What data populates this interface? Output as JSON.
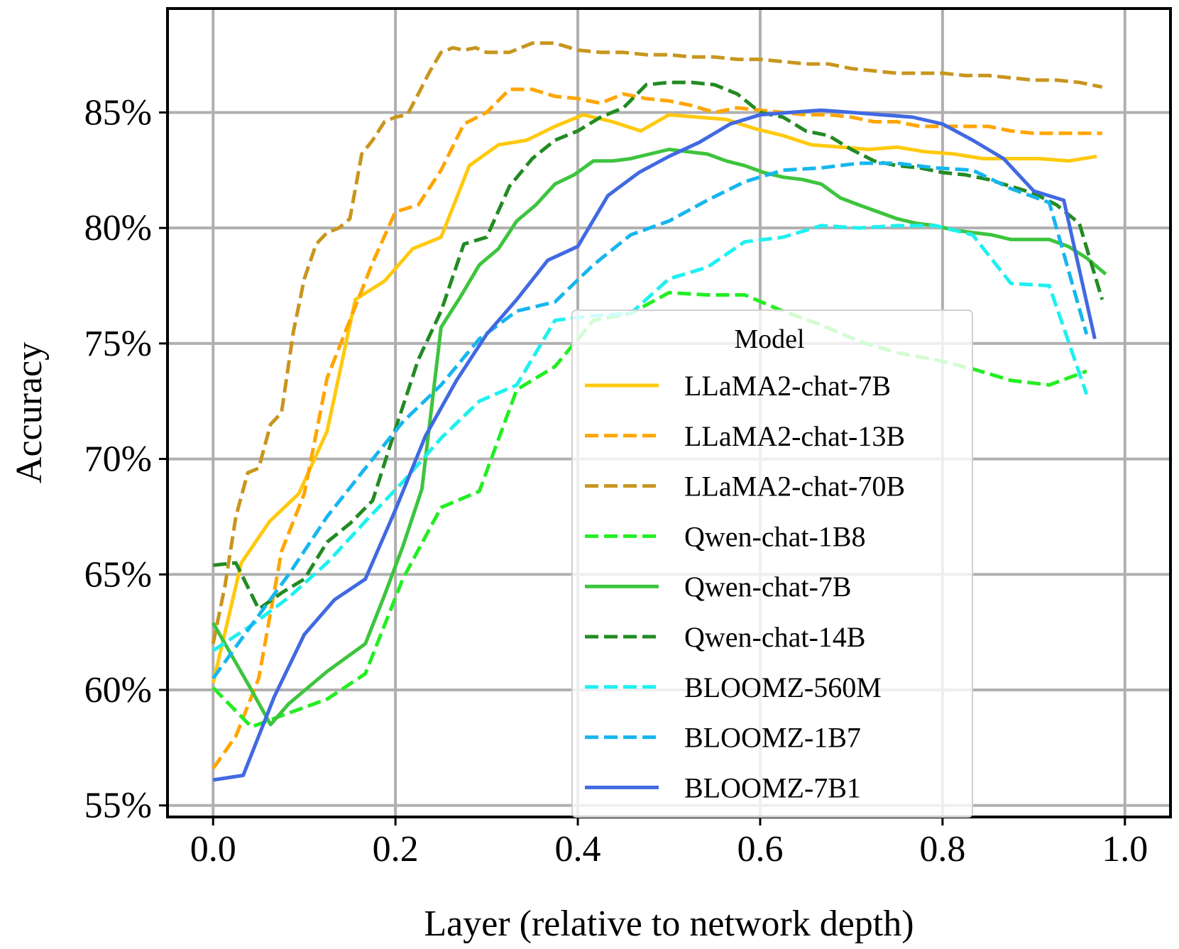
{
  "chart_data": {
    "type": "line",
    "title": "",
    "xlabel": "Layer (relative to network depth)",
    "ylabel": "Accuracy",
    "xlim": [
      -0.05,
      1.05
    ],
    "ylim": [
      54.5,
      89.5
    ],
    "x_ticks": [
      0.0,
      0.2,
      0.4,
      0.6,
      0.8,
      1.0
    ],
    "x_tick_labels": [
      "0.0",
      "0.2",
      "0.4",
      "0.6",
      "0.8",
      "1.0"
    ],
    "y_ticks": [
      55,
      60,
      65,
      70,
      75,
      80,
      85
    ],
    "y_tick_labels": [
      "55%",
      "60%",
      "65%",
      "70%",
      "75%",
      "80%",
      "85%"
    ],
    "grid": true,
    "legend": {
      "title": "Model",
      "placement": "center-right"
    },
    "series": [
      {
        "name": "LLaMA2-chat-7B",
        "color": "#FFC90E",
        "dash": "solid",
        "x": [
          0.0,
          0.031,
          0.062,
          0.094,
          0.125,
          0.156,
          0.188,
          0.219,
          0.25,
          0.281,
          0.313,
          0.344,
          0.375,
          0.406,
          0.438,
          0.469,
          0.5,
          0.531,
          0.563,
          0.594,
          0.625,
          0.656,
          0.688,
          0.719,
          0.75,
          0.781,
          0.813,
          0.844,
          0.875,
          0.906,
          0.938,
          0.969
        ],
        "y": [
          60.3,
          65.5,
          67.3,
          68.5,
          71.2,
          76.9,
          77.7,
          79.1,
          79.6,
          82.7,
          83.6,
          83.8,
          84.4,
          84.9,
          84.6,
          84.2,
          84.9,
          84.8,
          84.7,
          84.3,
          84.0,
          83.6,
          83.5,
          83.4,
          83.5,
          83.3,
          83.2,
          83.0,
          83.0,
          83.0,
          82.9,
          83.1
        ]
      },
      {
        "name": "LLaMA2-chat-13B",
        "color": "#FFA500",
        "dash": "dashed",
        "x": [
          0.0,
          0.025,
          0.05,
          0.075,
          0.1,
          0.125,
          0.15,
          0.175,
          0.2,
          0.225,
          0.25,
          0.275,
          0.3,
          0.325,
          0.35,
          0.375,
          0.4,
          0.425,
          0.45,
          0.475,
          0.5,
          0.525,
          0.55,
          0.575,
          0.6,
          0.625,
          0.65,
          0.675,
          0.7,
          0.725,
          0.75,
          0.775,
          0.8,
          0.825,
          0.85,
          0.875,
          0.9,
          0.925,
          0.95,
          0.975
        ],
        "y": [
          56.6,
          58.0,
          60.5,
          66.0,
          68.5,
          73.5,
          76.0,
          78.5,
          80.7,
          81.0,
          82.5,
          84.5,
          85.0,
          86.0,
          86.0,
          85.7,
          85.6,
          85.4,
          85.8,
          85.6,
          85.5,
          85.3,
          85.0,
          85.2,
          85.1,
          85.0,
          84.9,
          84.9,
          84.8,
          84.6,
          84.6,
          84.4,
          84.4,
          84.4,
          84.4,
          84.2,
          84.1,
          84.1,
          84.1,
          84.1
        ]
      },
      {
        "name": "LLaMA2-chat-70B",
        "color": "#C8961E",
        "dash": "dashed",
        "x": [
          0.0,
          0.013,
          0.025,
          0.038,
          0.05,
          0.063,
          0.075,
          0.088,
          0.1,
          0.113,
          0.125,
          0.138,
          0.15,
          0.163,
          0.175,
          0.188,
          0.2,
          0.213,
          0.225,
          0.238,
          0.25,
          0.263,
          0.275,
          0.288,
          0.3,
          0.325,
          0.35,
          0.375,
          0.4,
          0.425,
          0.45,
          0.475,
          0.5,
          0.525,
          0.55,
          0.575,
          0.6,
          0.625,
          0.65,
          0.675,
          0.7,
          0.725,
          0.75,
          0.775,
          0.8,
          0.825,
          0.85,
          0.875,
          0.9,
          0.925,
          0.95,
          0.975
        ],
        "y": [
          62.0,
          64.5,
          67.5,
          69.4,
          69.6,
          71.5,
          72.0,
          75.5,
          77.8,
          79.3,
          79.8,
          80.0,
          80.4,
          83.2,
          83.8,
          84.6,
          84.8,
          84.9,
          85.8,
          86.8,
          87.6,
          87.8,
          87.7,
          87.8,
          87.6,
          87.6,
          88.0,
          88.0,
          87.7,
          87.6,
          87.6,
          87.5,
          87.5,
          87.4,
          87.4,
          87.3,
          87.3,
          87.2,
          87.1,
          87.1,
          86.9,
          86.8,
          86.7,
          86.7,
          86.7,
          86.6,
          86.6,
          86.5,
          86.4,
          86.4,
          86.3,
          86.1
        ]
      },
      {
        "name": "Qwen-chat-1B8",
        "color": "#22EE22",
        "dash": "dashed",
        "x": [
          0.0,
          0.042,
          0.083,
          0.125,
          0.167,
          0.208,
          0.25,
          0.292,
          0.333,
          0.375,
          0.417,
          0.458,
          0.5,
          0.542,
          0.583,
          0.625,
          0.667,
          0.708,
          0.75,
          0.792,
          0.833,
          0.875,
          0.917,
          0.958
        ],
        "y": [
          60.1,
          58.4,
          59.0,
          59.6,
          60.7,
          64.8,
          67.9,
          68.6,
          73.0,
          74.0,
          76.0,
          76.3,
          77.2,
          77.1,
          77.1,
          76.4,
          75.8,
          75.1,
          74.6,
          74.3,
          73.9,
          73.4,
          73.2,
          73.8
        ]
      },
      {
        "name": "Qwen-chat-7B",
        "color": "#3EC43E",
        "dash": "solid",
        "x": [
          0.0,
          0.042,
          0.063,
          0.083,
          0.125,
          0.167,
          0.188,
          0.208,
          0.229,
          0.25,
          0.271,
          0.292,
          0.313,
          0.333,
          0.354,
          0.375,
          0.396,
          0.417,
          0.438,
          0.458,
          0.479,
          0.5,
          0.521,
          0.542,
          0.563,
          0.583,
          0.604,
          0.625,
          0.646,
          0.667,
          0.688,
          0.708,
          0.729,
          0.75,
          0.771,
          0.792,
          0.813,
          0.833,
          0.854,
          0.875,
          0.896,
          0.917,
          0.938,
          0.958,
          0.979
        ],
        "y": [
          62.9,
          60.0,
          58.5,
          59.4,
          60.8,
          62.0,
          64.1,
          66.2,
          68.7,
          75.7,
          77.0,
          78.4,
          79.1,
          80.3,
          81.0,
          81.9,
          82.3,
          82.9,
          82.9,
          83.0,
          83.2,
          83.4,
          83.3,
          83.2,
          82.9,
          82.7,
          82.4,
          82.2,
          82.1,
          81.9,
          81.3,
          81.0,
          80.7,
          80.4,
          80.2,
          80.1,
          79.9,
          79.8,
          79.7,
          79.5,
          79.5,
          79.5,
          79.2,
          78.7,
          78.0
        ]
      },
      {
        "name": "Qwen-chat-14B",
        "color": "#228B22",
        "dash": "dashed",
        "x": [
          0.0,
          0.025,
          0.05,
          0.075,
          0.1,
          0.125,
          0.15,
          0.175,
          0.2,
          0.225,
          0.25,
          0.275,
          0.3,
          0.325,
          0.35,
          0.375,
          0.4,
          0.425,
          0.45,
          0.475,
          0.5,
          0.525,
          0.55,
          0.575,
          0.6,
          0.625,
          0.65,
          0.675,
          0.7,
          0.725,
          0.75,
          0.775,
          0.8,
          0.825,
          0.85,
          0.875,
          0.9,
          0.925,
          0.95,
          0.975
        ],
        "y": [
          65.4,
          65.5,
          63.5,
          64.2,
          64.8,
          66.4,
          67.2,
          68.2,
          71.3,
          74.3,
          76.4,
          79.3,
          79.6,
          81.8,
          83.0,
          83.8,
          84.2,
          84.8,
          85.2,
          86.2,
          86.3,
          86.3,
          86.2,
          85.8,
          85.0,
          84.8,
          84.2,
          84.0,
          83.4,
          82.9,
          82.7,
          82.6,
          82.4,
          82.3,
          82.1,
          81.8,
          81.5,
          81.0,
          80.2,
          76.9
        ]
      },
      {
        "name": "BLOOMZ-560M",
        "color": "#1EF0F0",
        "dash": "dashed",
        "x": [
          0.0,
          0.042,
          0.083,
          0.125,
          0.167,
          0.208,
          0.25,
          0.292,
          0.333,
          0.375,
          0.417,
          0.458,
          0.5,
          0.542,
          0.583,
          0.625,
          0.667,
          0.708,
          0.75,
          0.792,
          0.833,
          0.875,
          0.917,
          0.958
        ],
        "y": [
          61.7,
          62.8,
          64.0,
          65.5,
          67.3,
          69.0,
          70.9,
          72.5,
          73.2,
          76.0,
          76.2,
          76.3,
          77.8,
          78.3,
          79.4,
          79.6,
          80.1,
          80.0,
          80.1,
          80.1,
          79.7,
          77.6,
          77.5,
          72.8
        ]
      },
      {
        "name": "BLOOMZ-1B7",
        "color": "#16B6EE",
        "dash": "dashed",
        "x": [
          0.0,
          0.042,
          0.083,
          0.125,
          0.167,
          0.208,
          0.25,
          0.292,
          0.333,
          0.375,
          0.417,
          0.458,
          0.5,
          0.542,
          0.583,
          0.625,
          0.667,
          0.708,
          0.75,
          0.792,
          0.833,
          0.875,
          0.917,
          0.958
        ],
        "y": [
          60.5,
          62.8,
          65.0,
          67.5,
          69.6,
          71.6,
          73.2,
          75.2,
          76.4,
          76.8,
          78.4,
          79.7,
          80.3,
          81.2,
          82.0,
          82.5,
          82.6,
          82.8,
          82.8,
          82.6,
          82.5,
          81.7,
          81.1,
          75.4
        ]
      },
      {
        "name": "BLOOMZ-7B1",
        "color": "#4169E1",
        "dash": "solid",
        "x": [
          0.0,
          0.033,
          0.067,
          0.1,
          0.133,
          0.167,
          0.2,
          0.233,
          0.267,
          0.3,
          0.333,
          0.367,
          0.4,
          0.433,
          0.467,
          0.5,
          0.533,
          0.567,
          0.6,
          0.633,
          0.667,
          0.7,
          0.733,
          0.767,
          0.8,
          0.833,
          0.867,
          0.9,
          0.933,
          0.967
        ],
        "y": [
          56.1,
          56.3,
          59.7,
          62.4,
          63.9,
          64.8,
          67.8,
          71.0,
          73.4,
          75.4,
          76.9,
          78.6,
          79.2,
          81.4,
          82.4,
          83.1,
          83.7,
          84.5,
          84.9,
          85.0,
          85.1,
          85.0,
          84.9,
          84.8,
          84.5,
          83.8,
          83.0,
          81.6,
          81.2,
          75.2
        ]
      }
    ]
  }
}
